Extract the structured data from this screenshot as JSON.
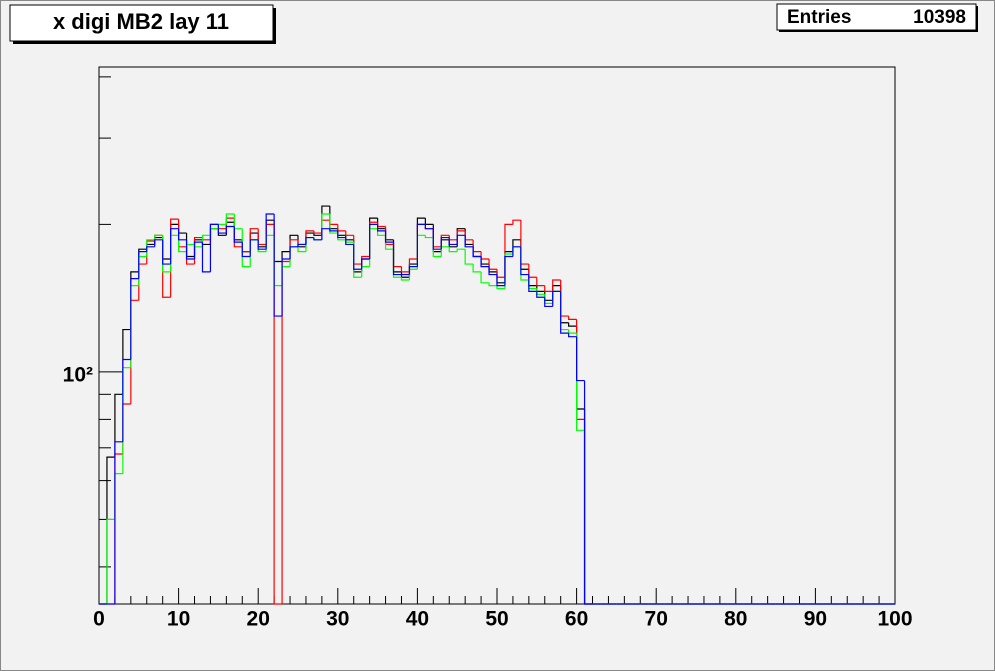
{
  "chart_data": {
    "type": "histogram",
    "title": "x digi MB2 lay 11",
    "stats": {
      "label": "Entries",
      "value": 10398
    },
    "bins": [
      0,
      1,
      2,
      3,
      4,
      5,
      6,
      7,
      8,
      9,
      10,
      11,
      12,
      13,
      14,
      15,
      16,
      17,
      18,
      19,
      20,
      21,
      22,
      23,
      24,
      25,
      26,
      27,
      28,
      29,
      30,
      31,
      32,
      33,
      34,
      35,
      36,
      37,
      38,
      39,
      40,
      41,
      42,
      43,
      44,
      45,
      46,
      47,
      48,
      49,
      50,
      51,
      52,
      53,
      54,
      55,
      56,
      57,
      58,
      59,
      60,
      61,
      62,
      63,
      64,
      65,
      66,
      67,
      68,
      69,
      70,
      71,
      72,
      73,
      74,
      75,
      76,
      77,
      78,
      79,
      80,
      81,
      82,
      83,
      84,
      85,
      86,
      87,
      88,
      89,
      90,
      91,
      92,
      93,
      94,
      95,
      96,
      97,
      98,
      99,
      100
    ],
    "series": [
      {
        "color": "#000000",
        "values": [
          0,
          67,
          90,
          122,
          160,
          178,
          182,
          188,
          170,
          200,
          192,
          172,
          186,
          182,
          196,
          190,
          202,
          186,
          176,
          192,
          180,
          204,
          168,
          176,
          190,
          180,
          192,
          190,
          218,
          196,
          190,
          186,
          160,
          170,
          206,
          196,
          186,
          160,
          156,
          166,
          206,
          200,
          176,
          186,
          180,
          196,
          182,
          172,
          166,
          160,
          152,
          176,
          186,
          162,
          150,
          146,
          140,
          150,
          126,
          124,
          84,
          0,
          0,
          0,
          0,
          0,
          0,
          0,
          0,
          0,
          0,
          0,
          0,
          0,
          0,
          0,
          0,
          0,
          0,
          0,
          0,
          0,
          0,
          0,
          0,
          0,
          0,
          0,
          0,
          0,
          0,
          0,
          0,
          0,
          0,
          0,
          0,
          0,
          0,
          0
        ]
      },
      {
        "color": "#ff0000",
        "values": [
          0,
          0,
          68,
          86,
          140,
          166,
          185,
          190,
          142,
          205,
          180,
          166,
          188,
          186,
          200,
          196,
          206,
          180,
          176,
          196,
          182,
          200,
          0,
          168,
          186,
          182,
          194,
          192,
          204,
          200,
          194,
          190,
          166,
          172,
          202,
          198,
          182,
          164,
          160,
          170,
          200,
          196,
          180,
          190,
          186,
          194,
          186,
          176,
          170,
          162,
          156,
          200,
          204,
          166,
          156,
          150,
          146,
          154,
          130,
          128,
          80,
          0,
          0,
          0,
          0,
          0,
          0,
          0,
          0,
          0,
          0,
          0,
          0,
          0,
          0,
          0,
          0,
          0,
          0,
          0,
          0,
          0,
          0,
          0,
          0,
          0,
          0,
          0,
          0,
          0,
          0,
          0,
          0,
          0,
          0,
          0,
          0,
          0,
          0,
          0
        ]
      },
      {
        "color": "#00ff00",
        "values": [
          0,
          50,
          62,
          102,
          150,
          172,
          186,
          190,
          160,
          190,
          176,
          182,
          180,
          190,
          196,
          200,
          210,
          196,
          164,
          186,
          176,
          190,
          150,
          164,
          180,
          176,
          188,
          186,
          210,
          192,
          186,
          184,
          156,
          164,
          196,
          190,
          178,
          156,
          154,
          162,
          190,
          188,
          172,
          180,
          176,
          178,
          166,
          160,
          152,
          150,
          148,
          174,
          180,
          154,
          148,
          144,
          138,
          146,
          122,
          120,
          76,
          0,
          0,
          0,
          0,
          0,
          0,
          0,
          0,
          0,
          0,
          0,
          0,
          0,
          0,
          0,
          0,
          0,
          0,
          0,
          0,
          0,
          0,
          0,
          0,
          0,
          0,
          0,
          0,
          0,
          0,
          0,
          0,
          0,
          0,
          0,
          0,
          0,
          0,
          0
        ]
      },
      {
        "color": "#0000ff",
        "values": [
          0,
          0,
          72,
          106,
          155,
          176,
          180,
          186,
          166,
          196,
          186,
          170,
          184,
          160,
          200,
          192,
          198,
          184,
          172,
          186,
          178,
          210,
          130,
          170,
          180,
          182,
          188,
          186,
          196,
          194,
          188,
          182,
          162,
          170,
          200,
          194,
          184,
          158,
          158,
          164,
          200,
          196,
          178,
          188,
          182,
          190,
          180,
          172,
          164,
          158,
          150,
          172,
          180,
          158,
          146,
          142,
          136,
          146,
          120,
          118,
          96,
          0,
          0,
          0,
          0,
          0,
          0,
          0,
          0,
          0,
          0,
          0,
          0,
          0,
          0,
          0,
          0,
          0,
          0,
          0,
          0,
          0,
          0,
          0,
          0,
          0,
          0,
          0,
          0,
          0,
          0,
          0,
          0,
          0,
          0,
          0,
          0,
          0,
          0,
          0
        ]
      }
    ],
    "xlim": [
      0,
      100
    ],
    "xticks": [
      0,
      10,
      20,
      30,
      40,
      50,
      60,
      70,
      80,
      90,
      100
    ],
    "xminorticks": [
      2,
      4,
      6,
      8,
      12,
      14,
      16,
      18,
      22,
      24,
      26,
      28,
      32,
      34,
      36,
      38,
      42,
      44,
      46,
      48,
      52,
      54,
      56,
      58,
      62,
      64,
      66,
      68,
      72,
      74,
      76,
      78,
      82,
      84,
      86,
      88,
      92,
      94,
      96,
      98
    ],
    "ylim": [
      33.6,
      419
    ],
    "log_y": true,
    "yticks": [
      {
        "value": 100,
        "label": "10²"
      }
    ],
    "yminorticks": [
      40,
      50,
      60,
      70,
      80,
      90,
      200,
      300,
      400
    ]
  }
}
